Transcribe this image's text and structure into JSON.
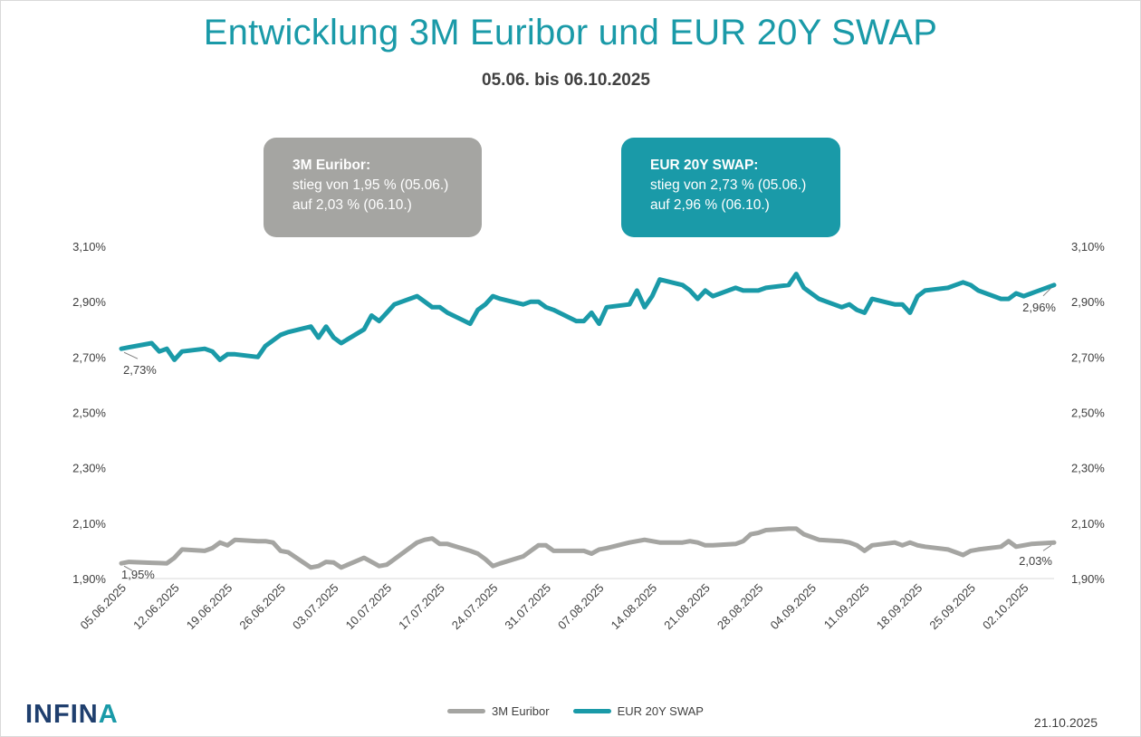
{
  "title": "Entwicklung 3M Euribor und EUR 20Y SWAP",
  "subtitle": "05.06. bis 06.10.2025",
  "info_boxes": {
    "euribor": {
      "heading": "3M Euribor:",
      "line1": "stieg von 1,95 % (05.06.)",
      "line2": "auf 2,03 % (06.10.)",
      "color": "#a5a5a2"
    },
    "swap": {
      "heading": "EUR 20Y SWAP:",
      "line1": "stieg von 2,73 % (05.06.)",
      "line2": "auf 2,96 % (06.10.)",
      "color": "#1a9aa8"
    }
  },
  "logo": {
    "text": "INFIN",
    "accent": "A"
  },
  "footer_date": "21.10.2025",
  "chart_data": {
    "type": "line",
    "title": "Entwicklung 3M Euribor und EUR 20Y SWAP",
    "subtitle": "05.06. bis 06.10.2025",
    "ylim": [
      1.9,
      3.1
    ],
    "yticks": [
      "1,90%",
      "2,10%",
      "2,30%",
      "2,50%",
      "2,70%",
      "2,90%",
      "3,10%"
    ],
    "ytick_values": [
      1.9,
      2.1,
      2.3,
      2.5,
      2.7,
      2.9,
      3.1
    ],
    "xticks": [
      "05.06.2025",
      "12.06.2025",
      "19.06.2025",
      "26.06.2025",
      "03.07.2025",
      "10.07.2025",
      "17.07.2025",
      "24.07.2025",
      "31.07.2025",
      "07.08.2025",
      "14.08.2025",
      "21.08.2025",
      "28.08.2025",
      "04.09.2025",
      "11.09.2025",
      "18.09.2025",
      "25.09.2025",
      "02.10.2025"
    ],
    "grid": false,
    "legend_position": "bottom",
    "x_range": [
      "05.06.2025",
      "06.10.2025"
    ],
    "series": [
      {
        "name": "3M Euribor",
        "color": "#a5a5a2",
        "start_label": "1,95%",
        "end_label": "2,03%",
        "points": [
          [
            "05.06.2025",
            1.955
          ],
          [
            "06.06.2025",
            1.96
          ],
          [
            "09.06.2025",
            1.957
          ],
          [
            "10.06.2025",
            1.956
          ],
          [
            "11.06.2025",
            1.955
          ],
          [
            "12.06.2025",
            1.975
          ],
          [
            "13.06.2025",
            2.005
          ],
          [
            "16.06.2025",
            2.0
          ],
          [
            "17.06.2025",
            2.01
          ],
          [
            "18.06.2025",
            2.03
          ],
          [
            "19.06.2025",
            2.02
          ],
          [
            "20.06.2025",
            2.04
          ],
          [
            "23.06.2025",
            2.035
          ],
          [
            "24.06.2025",
            2.035
          ],
          [
            "25.06.2025",
            2.03
          ],
          [
            "26.06.2025",
            2.0
          ],
          [
            "27.06.2025",
            1.995
          ],
          [
            "30.06.2025",
            1.94
          ],
          [
            "01.07.2025",
            1.945
          ],
          [
            "02.07.2025",
            1.96
          ],
          [
            "03.07.2025",
            1.958
          ],
          [
            "04.07.2025",
            1.94
          ],
          [
            "07.07.2025",
            1.975
          ],
          [
            "08.07.2025",
            1.96
          ],
          [
            "09.07.2025",
            1.945
          ],
          [
            "10.07.2025",
            1.95
          ],
          [
            "11.07.2025",
            1.97
          ],
          [
            "14.07.2025",
            2.03
          ],
          [
            "15.07.2025",
            2.04
          ],
          [
            "16.07.2025",
            2.045
          ],
          [
            "17.07.2025",
            2.025
          ],
          [
            "18.07.2025",
            2.025
          ],
          [
            "21.07.2025",
            2.0
          ],
          [
            "22.07.2025",
            1.99
          ],
          [
            "23.07.2025",
            1.97
          ],
          [
            "24.07.2025",
            1.945
          ],
          [
            "25.07.2025",
            1.955
          ],
          [
            "28.07.2025",
            1.98
          ],
          [
            "29.07.2025",
            2.0
          ],
          [
            "30.07.2025",
            2.02
          ],
          [
            "31.07.2025",
            2.02
          ],
          [
            "01.08.2025",
            2.0
          ],
          [
            "04.08.2025",
            2.0
          ],
          [
            "05.08.2025",
            2.0
          ],
          [
            "06.08.2025",
            1.99
          ],
          [
            "07.08.2025",
            2.005
          ],
          [
            "08.08.2025",
            2.01
          ],
          [
            "11.08.2025",
            2.03
          ],
          [
            "12.08.2025",
            2.035
          ],
          [
            "13.08.2025",
            2.04
          ],
          [
            "14.08.2025",
            2.035
          ],
          [
            "15.08.2025",
            2.03
          ],
          [
            "18.08.2025",
            2.03
          ],
          [
            "19.08.2025",
            2.035
          ],
          [
            "20.08.2025",
            2.03
          ],
          [
            "21.08.2025",
            2.02
          ],
          [
            "22.08.2025",
            2.02
          ],
          [
            "25.08.2025",
            2.025
          ],
          [
            "26.08.2025",
            2.035
          ],
          [
            "27.08.2025",
            2.06
          ],
          [
            "28.08.2025",
            2.065
          ],
          [
            "29.08.2025",
            2.075
          ],
          [
            "01.09.2025",
            2.08
          ],
          [
            "02.09.2025",
            2.08
          ],
          [
            "03.09.2025",
            2.06
          ],
          [
            "04.09.2025",
            2.05
          ],
          [
            "05.09.2025",
            2.04
          ],
          [
            "08.09.2025",
            2.035
          ],
          [
            "09.09.2025",
            2.03
          ],
          [
            "10.09.2025",
            2.02
          ],
          [
            "11.09.2025",
            2.0
          ],
          [
            "12.09.2025",
            2.02
          ],
          [
            "15.09.2025",
            2.03
          ],
          [
            "16.09.2025",
            2.02
          ],
          [
            "17.09.2025",
            2.03
          ],
          [
            "18.09.2025",
            2.02
          ],
          [
            "19.09.2025",
            2.015
          ],
          [
            "22.09.2025",
            2.005
          ],
          [
            "23.09.2025",
            1.995
          ],
          [
            "24.09.2025",
            1.985
          ],
          [
            "25.09.2025",
            2.0
          ],
          [
            "26.09.2025",
            2.005
          ],
          [
            "29.09.2025",
            2.015
          ],
          [
            "30.09.2025",
            2.035
          ],
          [
            "01.10.2025",
            2.015
          ],
          [
            "02.10.2025",
            2.02
          ],
          [
            "03.10.2025",
            2.025
          ],
          [
            "06.10.2025",
            2.03
          ]
        ]
      },
      {
        "name": "EUR 20Y SWAP",
        "color": "#1a9aa8",
        "start_label": "2,73%",
        "end_label": "2,96%",
        "points": [
          [
            "05.06.2025",
            2.73
          ],
          [
            "06.06.2025",
            2.735
          ],
          [
            "09.06.2025",
            2.75
          ],
          [
            "10.06.2025",
            2.72
          ],
          [
            "11.06.2025",
            2.73
          ],
          [
            "12.06.2025",
            2.69
          ],
          [
            "13.06.2025",
            2.72
          ],
          [
            "16.06.2025",
            2.73
          ],
          [
            "17.06.2025",
            2.72
          ],
          [
            "18.06.2025",
            2.69
          ],
          [
            "19.06.2025",
            2.71
          ],
          [
            "20.06.2025",
            2.71
          ],
          [
            "23.06.2025",
            2.7
          ],
          [
            "24.06.2025",
            2.74
          ],
          [
            "25.06.2025",
            2.76
          ],
          [
            "26.06.2025",
            2.78
          ],
          [
            "27.06.2025",
            2.79
          ],
          [
            "30.06.2025",
            2.81
          ],
          [
            "01.07.2025",
            2.77
          ],
          [
            "02.07.2025",
            2.81
          ],
          [
            "03.07.2025",
            2.77
          ],
          [
            "04.07.2025",
            2.75
          ],
          [
            "07.07.2025",
            2.8
          ],
          [
            "08.07.2025",
            2.85
          ],
          [
            "09.07.2025",
            2.83
          ],
          [
            "10.07.2025",
            2.86
          ],
          [
            "11.07.2025",
            2.89
          ],
          [
            "14.07.2025",
            2.92
          ],
          [
            "15.07.2025",
            2.9
          ],
          [
            "16.07.2025",
            2.88
          ],
          [
            "17.07.2025",
            2.88
          ],
          [
            "18.07.2025",
            2.86
          ],
          [
            "21.07.2025",
            2.82
          ],
          [
            "22.07.2025",
            2.87
          ],
          [
            "23.07.2025",
            2.89
          ],
          [
            "24.07.2025",
            2.92
          ],
          [
            "25.07.2025",
            2.91
          ],
          [
            "28.07.2025",
            2.89
          ],
          [
            "29.07.2025",
            2.9
          ],
          [
            "30.07.2025",
            2.9
          ],
          [
            "31.07.2025",
            2.88
          ],
          [
            "01.08.2025",
            2.87
          ],
          [
            "04.08.2025",
            2.83
          ],
          [
            "05.08.2025",
            2.83
          ],
          [
            "06.08.2025",
            2.86
          ],
          [
            "07.08.2025",
            2.82
          ],
          [
            "08.08.2025",
            2.88
          ],
          [
            "11.08.2025",
            2.89
          ],
          [
            "12.08.2025",
            2.94
          ],
          [
            "13.08.2025",
            2.88
          ],
          [
            "14.08.2025",
            2.92
          ],
          [
            "15.08.2025",
            2.98
          ],
          [
            "18.08.2025",
            2.96
          ],
          [
            "19.08.2025",
            2.94
          ],
          [
            "20.08.2025",
            2.91
          ],
          [
            "21.08.2025",
            2.94
          ],
          [
            "22.08.2025",
            2.92
          ],
          [
            "25.08.2025",
            2.95
          ],
          [
            "26.08.2025",
            2.94
          ],
          [
            "27.08.2025",
            2.94
          ],
          [
            "28.08.2025",
            2.94
          ],
          [
            "29.08.2025",
            2.95
          ],
          [
            "01.09.2025",
            2.96
          ],
          [
            "02.09.2025",
            3.0
          ],
          [
            "03.09.2025",
            2.95
          ],
          [
            "04.09.2025",
            2.93
          ],
          [
            "05.09.2025",
            2.91
          ],
          [
            "08.09.2025",
            2.88
          ],
          [
            "09.09.2025",
            2.89
          ],
          [
            "10.09.2025",
            2.87
          ],
          [
            "11.09.2025",
            2.86
          ],
          [
            "12.09.2025",
            2.91
          ],
          [
            "15.09.2025",
            2.89
          ],
          [
            "16.09.2025",
            2.89
          ],
          [
            "17.09.2025",
            2.86
          ],
          [
            "18.09.2025",
            2.92
          ],
          [
            "19.09.2025",
            2.94
          ],
          [
            "22.09.2025",
            2.95
          ],
          [
            "23.09.2025",
            2.96
          ],
          [
            "24.09.2025",
            2.97
          ],
          [
            "25.09.2025",
            2.96
          ],
          [
            "26.09.2025",
            2.94
          ],
          [
            "29.09.2025",
            2.91
          ],
          [
            "30.09.2025",
            2.91
          ],
          [
            "01.10.2025",
            2.93
          ],
          [
            "02.10.2025",
            2.92
          ],
          [
            "03.10.2025",
            2.93
          ],
          [
            "06.10.2025",
            2.96
          ]
        ]
      }
    ]
  }
}
